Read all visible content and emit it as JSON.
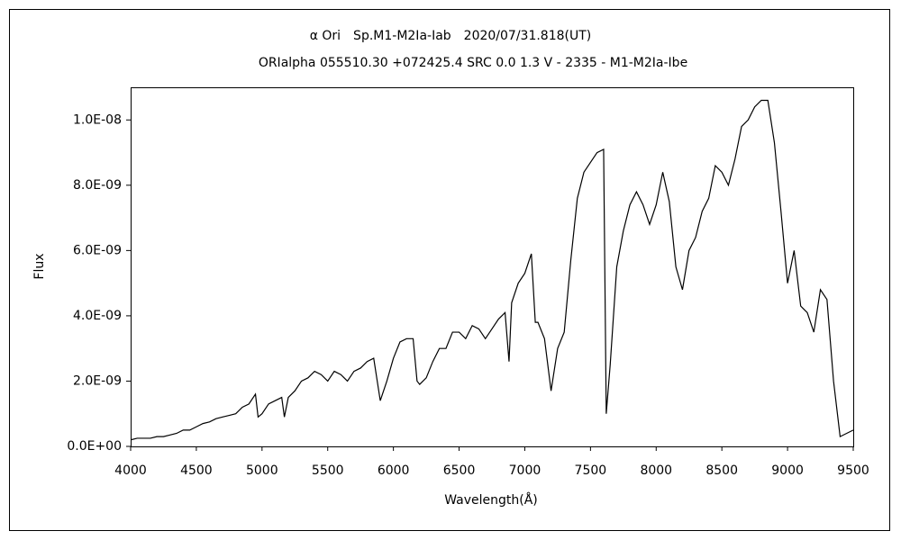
{
  "chart_data": {
    "type": "line",
    "title": "α Ori　Sp.M1-M2Ia-Iab　2020/07/31.818(UT)",
    "subtitle": "ORIalpha 055510.30 +072425.4 SRC 0.0 1.3 V - 2335 - M1-M2Ia-Ibe",
    "x_label": "Wavelength(Å)",
    "y_label": "Flux",
    "xlim": [
      4000,
      9500
    ],
    "xticks": [
      4000,
      4500,
      5000,
      5500,
      6000,
      6500,
      7000,
      7500,
      8000,
      8500,
      9000,
      9500
    ],
    "ylim": [
      0,
      1.1e-08
    ],
    "yticks": [
      {
        "value": 0,
        "label": "0.0E+00"
      },
      {
        "value": 2e-09,
        "label": "2.0E-09"
      },
      {
        "value": 4e-09,
        "label": "4.0E-09"
      },
      {
        "value": 6e-09,
        "label": "6.0E-09"
      },
      {
        "value": 8e-09,
        "label": "8.0E-09"
      },
      {
        "value": 1e-08,
        "label": "1.0E-08"
      }
    ],
    "grid": false,
    "color": "#000000",
    "x": [
      4000,
      4050,
      4100,
      4150,
      4200,
      4250,
      4300,
      4350,
      4400,
      4450,
      4500,
      4550,
      4600,
      4650,
      4700,
      4750,
      4800,
      4850,
      4900,
      4950,
      4970,
      5000,
      5050,
      5100,
      5150,
      5170,
      5200,
      5250,
      5300,
      5350,
      5400,
      5450,
      5500,
      5550,
      5600,
      5650,
      5700,
      5750,
      5800,
      5850,
      5900,
      5950,
      6000,
      6050,
      6100,
      6150,
      6180,
      6200,
      6250,
      6300,
      6350,
      6400,
      6450,
      6500,
      6550,
      6600,
      6650,
      6700,
      6750,
      6800,
      6850,
      6880,
      6900,
      6950,
      7000,
      7050,
      7080,
      7100,
      7150,
      7200,
      7250,
      7300,
      7350,
      7400,
      7450,
      7500,
      7550,
      7600,
      7620,
      7650,
      7700,
      7750,
      7800,
      7850,
      7900,
      7950,
      8000,
      8050,
      8100,
      8150,
      8200,
      8250,
      8300,
      8350,
      8400,
      8450,
      8500,
      8550,
      8600,
      8650,
      8700,
      8750,
      8800,
      8850,
      8900,
      8950,
      9000,
      9050,
      9100,
      9150,
      9200,
      9250,
      9300,
      9350,
      9400,
      9450,
      9500
    ],
    "values": [
      2e-10,
      2.5e-10,
      2.5e-10,
      2.5e-10,
      3e-10,
      3e-10,
      3.5e-10,
      4e-10,
      5e-10,
      5e-10,
      6e-10,
      7e-10,
      7.5e-10,
      8.5e-10,
      9e-10,
      9.5e-10,
      1e-09,
      1.2e-09,
      1.3e-09,
      1.6e-09,
      9e-10,
      1e-09,
      1.3e-09,
      1.4e-09,
      1.5e-09,
      9e-10,
      1.5e-09,
      1.7e-09,
      2e-09,
      2.1e-09,
      2.3e-09,
      2.2e-09,
      2e-09,
      2.3e-09,
      2.2e-09,
      2e-09,
      2.3e-09,
      2.4e-09,
      2.6e-09,
      2.7e-09,
      1.4e-09,
      2e-09,
      2.7e-09,
      3.2e-09,
      3.3e-09,
      3.3e-09,
      2e-09,
      1.9e-09,
      2.1e-09,
      2.6e-09,
      3e-09,
      3e-09,
      3.5e-09,
      3.5e-09,
      3.3e-09,
      3.7e-09,
      3.6e-09,
      3.3e-09,
      3.6e-09,
      3.9e-09,
      4.1e-09,
      2.6e-09,
      4.4e-09,
      5e-09,
      5.3e-09,
      5.9e-09,
      3.8e-09,
      3.8e-09,
      3.3e-09,
      1.7e-09,
      3e-09,
      3.5e-09,
      5.7e-09,
      7.6e-09,
      8.4e-09,
      8.7e-09,
      9e-09,
      9.1e-09,
      1e-09,
      2.5e-09,
      5.5e-09,
      6.6e-09,
      7.4e-09,
      7.8e-09,
      7.4e-09,
      6.8e-09,
      7.4e-09,
      8.4e-09,
      7.5e-09,
      5.5e-09,
      4.8e-09,
      6e-09,
      6.4e-09,
      7.2e-09,
      7.6e-09,
      8.6e-09,
      8.4e-09,
      8e-09,
      8.8e-09,
      9.8e-09,
      1e-08,
      1.04e-08,
      1.06e-08,
      1.06e-08,
      9.3e-09,
      7.2e-09,
      5e-09,
      6e-09,
      4.3e-09,
      4.1e-09,
      3.5e-09,
      4.8e-09,
      4.5e-09,
      2e-09,
      3e-10,
      4e-10,
      5e-10
    ]
  }
}
